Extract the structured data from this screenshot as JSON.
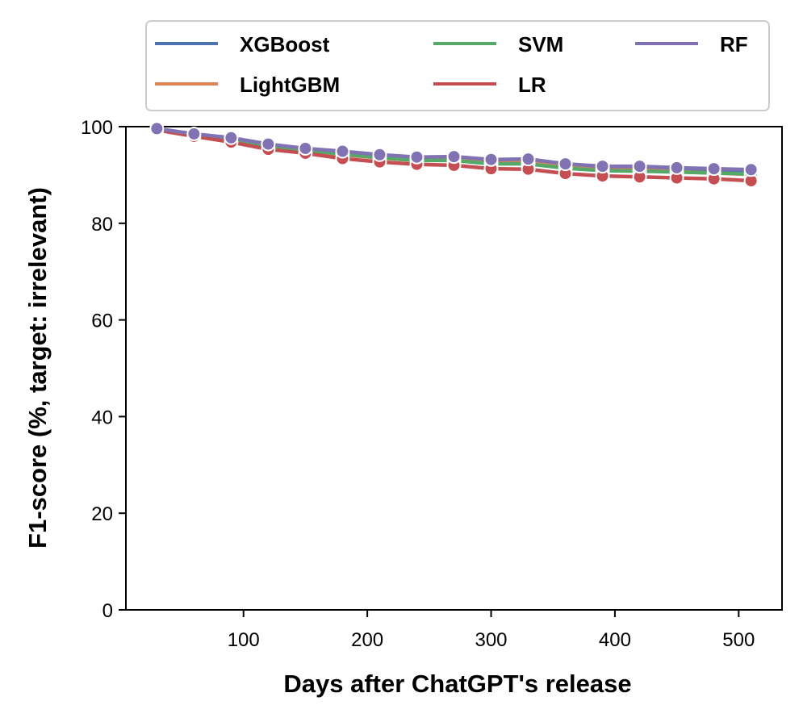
{
  "chart_data": {
    "type": "line",
    "title": "",
    "xlabel": "Days after ChatGPT's release",
    "ylabel": "F1-score (%, target: irrelevant)",
    "xlim": [
      5,
      535
    ],
    "ylim": [
      0,
      100
    ],
    "xticks": [
      100,
      200,
      300,
      400,
      500
    ],
    "yticks": [
      0,
      20,
      40,
      60,
      80,
      100
    ],
    "grid": false,
    "legend": {
      "placement": "top, above plot",
      "columns": 3
    },
    "x": [
      30,
      60,
      90,
      120,
      150,
      180,
      210,
      240,
      270,
      300,
      330,
      360,
      390,
      420,
      450,
      480,
      510
    ],
    "series": [
      {
        "name": "XGBoost",
        "color": "#4c72b0",
        "values": [
          99.5,
          98.4,
          97.4,
          96.0,
          95.2,
          94.5,
          93.8,
          93.3,
          93.5,
          92.8,
          93.0,
          92.0,
          91.5,
          91.5,
          91.2,
          91.0,
          90.7
        ]
      },
      {
        "name": "LightGBM",
        "color": "#dd8452",
        "values": [
          99.5,
          98.3,
          97.2,
          95.9,
          95.0,
          94.2,
          93.5,
          93.0,
          93.1,
          92.4,
          92.6,
          91.6,
          91.0,
          91.0,
          90.7,
          90.4,
          90.1
        ]
      },
      {
        "name": "SVM",
        "color": "#55a868",
        "values": [
          99.4,
          98.3,
          97.3,
          96.0,
          95.1,
          94.3,
          93.6,
          93.0,
          93.0,
          92.3,
          92.3,
          91.4,
          90.9,
          90.8,
          90.6,
          90.4,
          90.2
        ]
      },
      {
        "name": "LR",
        "color": "#c44e52",
        "values": [
          99.3,
          98.0,
          96.8,
          95.3,
          94.5,
          93.4,
          92.7,
          92.2,
          92.0,
          91.3,
          91.2,
          90.3,
          89.8,
          89.6,
          89.4,
          89.2,
          88.8
        ]
      },
      {
        "name": "RF",
        "color": "#8172b3",
        "values": [
          99.6,
          98.5,
          97.7,
          96.4,
          95.5,
          94.9,
          94.2,
          93.7,
          93.8,
          93.2,
          93.3,
          92.3,
          91.8,
          91.8,
          91.5,
          91.3,
          91.1
        ]
      }
    ]
  }
}
